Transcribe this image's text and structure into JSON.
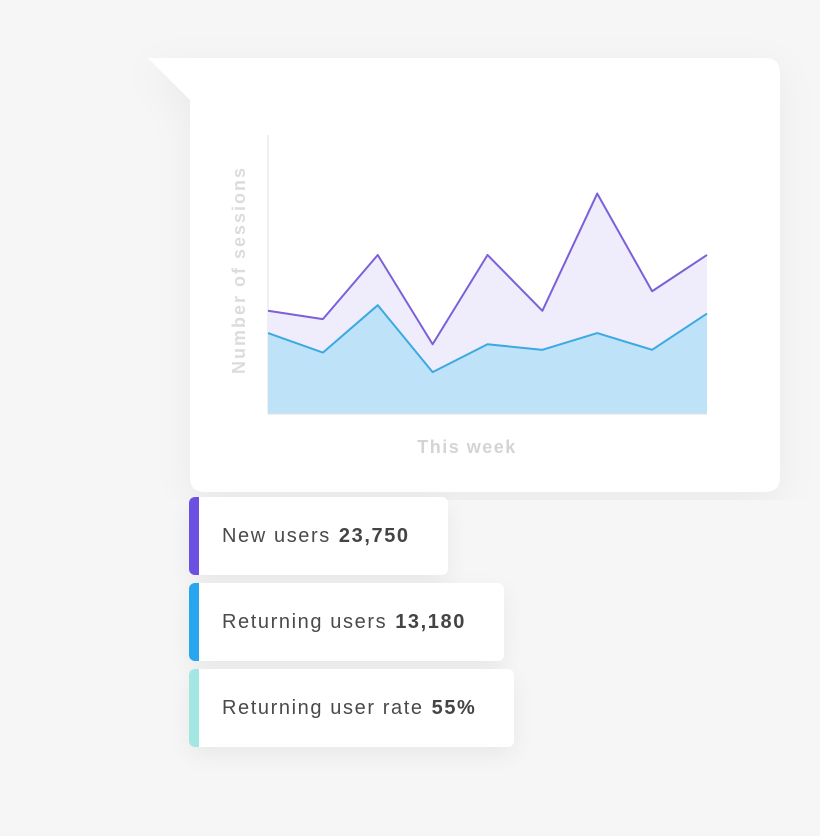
{
  "chart_data": {
    "type": "area",
    "xlabel": "This week",
    "ylabel": "Number of sessions",
    "categories": [
      null,
      null,
      null,
      null,
      null,
      null,
      null,
      null,
      null
    ],
    "ylim": [
      0,
      100
    ],
    "series": [
      {
        "name": "New users",
        "color": "#7b60d8",
        "fill": "#efecfb",
        "values": [
          37,
          34,
          57,
          25,
          57,
          37,
          79,
          44,
          57
        ]
      },
      {
        "name": "Returning users",
        "color": "#3ba9e2",
        "fill": "#bee3f8",
        "values": [
          29,
          22,
          39,
          15,
          25,
          23,
          29,
          23,
          36
        ]
      }
    ]
  },
  "stats": [
    {
      "label": "New users",
      "value": "23,750",
      "color": "#6b50e2"
    },
    {
      "label": "Returning users",
      "value": "13,180",
      "color": "#27a5ee"
    },
    {
      "label": "Returning user rate",
      "value": "55%",
      "color": "#a3e7e3"
    }
  ]
}
